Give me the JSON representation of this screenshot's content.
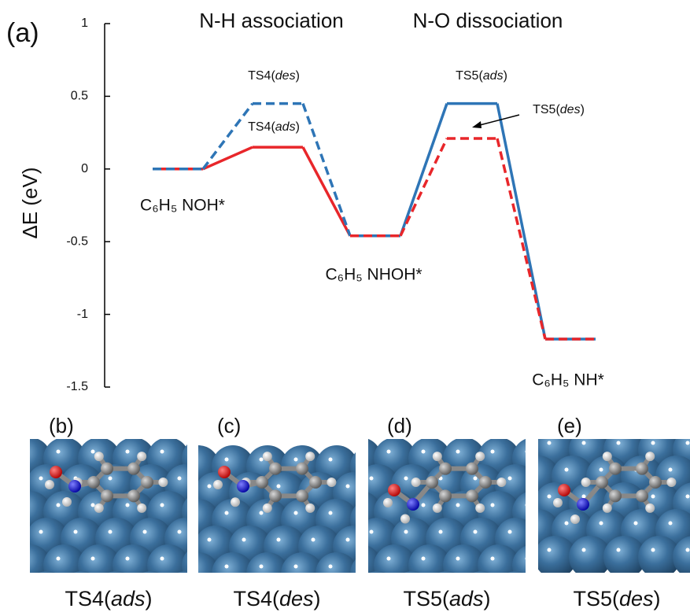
{
  "chart_data": {
    "type": "energy-profile",
    "panel_label": "(a)",
    "section_titles": [
      "N-H association",
      "N-O dissociation"
    ],
    "y_label": "ΔE (eV)",
    "categories": [
      "C₆H₅ NOH*",
      null,
      "C₆H₅ NHOH*",
      null,
      "C₆H₅ NH*"
    ],
    "series": [
      {
        "name": "TS4(ads)",
        "color": "#e8262a",
        "dashed": false,
        "values": [
          0,
          0.15,
          -0.46,
          null,
          null
        ]
      },
      {
        "name": "TS4(des)",
        "color": "#2e75b6",
        "dashed": true,
        "values": [
          0,
          0.45,
          -0.46,
          null,
          null
        ]
      },
      {
        "name": "TS5(ads)",
        "color": "#2e75b6",
        "dashed": false,
        "values": [
          null,
          null,
          -0.46,
          0.45,
          -1.17
        ]
      },
      {
        "name": "TS5(des)",
        "color": "#e8262a",
        "dashed": true,
        "values": [
          null,
          null,
          -0.46,
          0.21,
          -1.17
        ]
      }
    ],
    "ylim": [
      -1.5,
      1
    ],
    "yticks": [
      -1.5,
      -1,
      -0.5,
      0,
      0.5,
      1
    ]
  },
  "panels": [
    {
      "label": "(b)",
      "caption": "TS4(ads)"
    },
    {
      "label": "(c)",
      "caption": "TS4(des)"
    },
    {
      "label": "(d)",
      "caption": "TS5(ads)"
    },
    {
      "label": "(e)",
      "caption": "TS5(des)"
    }
  ]
}
